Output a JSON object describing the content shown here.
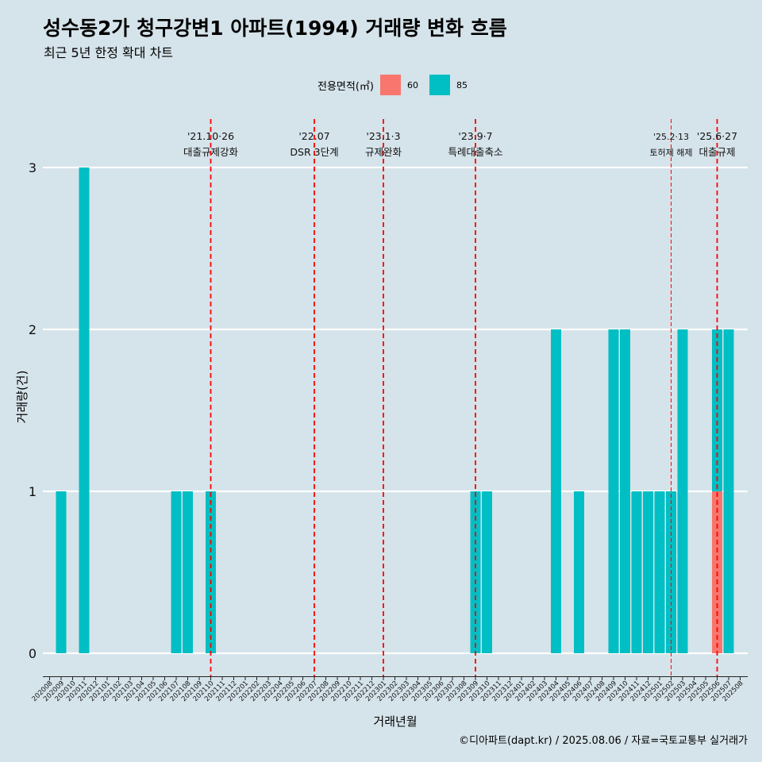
{
  "chart_data": {
    "type": "bar",
    "title": "성수동2가 청구강변1 아파트(1994) 거래량 변화 흐름",
    "subtitle": "최근 5년 한정 확대 차트",
    "xlabel": "거래년월",
    "ylabel": "거래량(건)",
    "ylim": [
      0,
      3
    ],
    "yticks": [
      0,
      1,
      2,
      3
    ],
    "grid": "horizontal",
    "legend": {
      "title": "전용면적(㎡)",
      "position": "top-center",
      "items": [
        {
          "name": "60",
          "color": "#f8766d"
        },
        {
          "name": "85",
          "color": "#00bfc4"
        }
      ]
    },
    "categories": [
      "202008",
      "202009",
      "202010",
      "202011",
      "202012",
      "202101",
      "202102",
      "202103",
      "202104",
      "202105",
      "202106",
      "202107",
      "202108",
      "202109",
      "202110",
      "202111",
      "202112",
      "202201",
      "202202",
      "202203",
      "202204",
      "202205",
      "202206",
      "202207",
      "202208",
      "202209",
      "202210",
      "202211",
      "202212",
      "202301",
      "202302",
      "202303",
      "202304",
      "202305",
      "202306",
      "202307",
      "202308",
      "202309",
      "202310",
      "202311",
      "202312",
      "202401",
      "202402",
      "202403",
      "202404",
      "202405",
      "202406",
      "202407",
      "202408",
      "202409",
      "202410",
      "202411",
      "202412",
      "202501",
      "202502",
      "202503",
      "202504",
      "202505",
      "202506",
      "202507",
      "202508"
    ],
    "bars": [
      {
        "month": "202009",
        "area": "85",
        "value": 1
      },
      {
        "month": "202011",
        "area": "85",
        "value": 3
      },
      {
        "month": "202107",
        "area": "85",
        "value": 1
      },
      {
        "month": "202108",
        "area": "85",
        "value": 1
      },
      {
        "month": "202110",
        "area": "85",
        "value": 1
      },
      {
        "month": "202309",
        "area": "85",
        "value": 1
      },
      {
        "month": "202310",
        "area": "85",
        "value": 1
      },
      {
        "month": "202404",
        "area": "85",
        "value": 2
      },
      {
        "month": "202406",
        "area": "85",
        "value": 1
      },
      {
        "month": "202409",
        "area": "85",
        "value": 2
      },
      {
        "month": "202410",
        "area": "85",
        "value": 2
      },
      {
        "month": "202411",
        "area": "85",
        "value": 1
      },
      {
        "month": "202412",
        "area": "85",
        "value": 1
      },
      {
        "month": "202501",
        "area": "85",
        "value": 1
      },
      {
        "month": "202502",
        "area": "85",
        "value": 1
      },
      {
        "month": "202503",
        "area": "85",
        "value": 2
      },
      {
        "month": "202506",
        "area": "60",
        "value": 1
      },
      {
        "month": "202506",
        "area": "85",
        "value": 1
      },
      {
        "month": "202507",
        "area": "85",
        "value": 2
      }
    ],
    "annotations": [
      {
        "month": "202110",
        "date": "'21.10·26",
        "text": "대출규제강화",
        "style": "bold"
      },
      {
        "month": "202207",
        "date": "'22.07",
        "text": "DSR 3단계",
        "style": "bold"
      },
      {
        "month": "202301",
        "date": "'23.1·3",
        "text": "규제완화",
        "style": "bold"
      },
      {
        "month": "202309",
        "date": "'23.9·7",
        "text": "특례대출축소",
        "style": "bold"
      },
      {
        "month": "202502",
        "date": "'25.2·13",
        "text": "토허제 해제",
        "style": "thin"
      },
      {
        "month": "202506",
        "date": "'25.6·27",
        "text": "대출규제",
        "style": "bold"
      }
    ]
  },
  "caption": "©디아파트(dapt.kr) / 2025.08.06 / 자료=국토교통부 실거래가",
  "colors": {
    "background": "#d5e3ea",
    "grid": "#ffffff",
    "annotation_line": "#ff0000"
  }
}
